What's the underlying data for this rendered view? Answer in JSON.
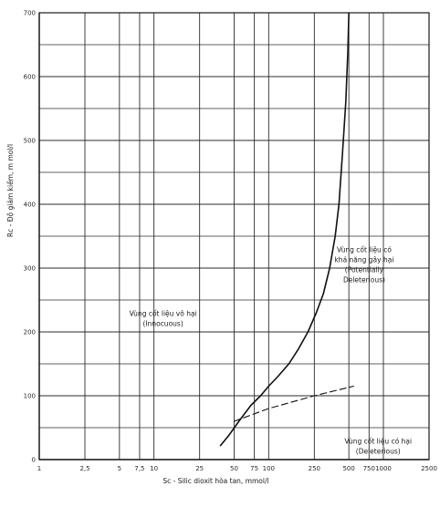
{
  "chart_data": {
    "type": "line",
    "xlabel": "Sc - Silic dioxit hòa tan, mmol/l",
    "ylabel": "Rc - Độ giảm kiềm, m mol/l",
    "xscale": "log",
    "xlim": [
      1,
      2500
    ],
    "ylim": [
      0,
      700
    ],
    "grid": true,
    "x_ticks": [
      "1",
      "2,5",
      "5",
      "7,5",
      "10",
      "25",
      "50",
      "75",
      "100",
      "250",
      "500",
      "750",
      "1000",
      "2500"
    ],
    "x_tick_values": [
      1,
      2.5,
      5,
      7.5,
      10,
      25,
      50,
      75,
      100,
      250,
      500,
      750,
      1000,
      2500
    ],
    "y_ticks": [
      "0",
      "100",
      "200",
      "300",
      "400",
      "500",
      "600",
      "700"
    ],
    "y_tick_values": [
      0,
      100,
      200,
      300,
      400,
      500,
      600,
      700
    ],
    "series": [
      {
        "style": "solid",
        "points": [
          [
            38,
            22
          ],
          [
            45,
            38
          ],
          [
            55,
            60
          ],
          [
            70,
            85
          ],
          [
            85,
            100
          ],
          [
            100,
            115
          ],
          [
            120,
            130
          ],
          [
            150,
            150
          ],
          [
            180,
            172
          ],
          [
            220,
            200
          ],
          [
            260,
            230
          ],
          [
            300,
            260
          ],
          [
            340,
            300
          ],
          [
            380,
            350
          ],
          [
            410,
            400
          ],
          [
            440,
            480
          ],
          [
            470,
            560
          ],
          [
            490,
            640
          ],
          [
            500,
            700
          ]
        ]
      },
      {
        "style": "dashed",
        "points": [
          [
            50,
            60
          ],
          [
            100,
            80
          ],
          [
            250,
            100
          ],
          [
            550,
            115
          ]
        ]
      }
    ],
    "annotations": [
      {
        "lines": [
          "Vùng cốt liệu vô hại",
          "(Innocuous)"
        ],
        "x": 12,
        "y": 225
      },
      {
        "lines": [
          "Vùng cốt liệu có",
          "khả năng gây hại",
          "(Potentially",
          "Deleterious)"
        ],
        "x": 680,
        "y": 325
      },
      {
        "lines": [
          "Vùng cốt liệu có hại",
          "(Deleterious)"
        ],
        "x": 900,
        "y": 25
      }
    ]
  }
}
